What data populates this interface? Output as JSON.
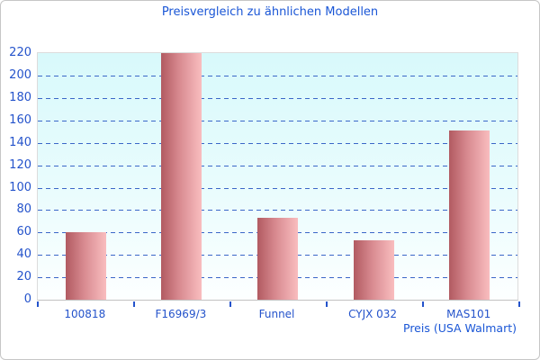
{
  "window": {
    "background": "#ffffff",
    "border_color": "#c6c6c6"
  },
  "chart_data": {
    "type": "bar",
    "title": "Preisvergleich zu ähnlichen Modellen",
    "categories": [
      "100818",
      "F16969/3",
      "Funnel",
      "CYJX 032",
      "MAS101"
    ],
    "values": [
      60,
      220,
      73,
      53,
      151
    ],
    "xlabel": "Preis (USA Walmart)",
    "ylabel": "",
    "ylim": [
      0,
      220
    ],
    "ytick_step": 20,
    "ytick_labels": [
      "0",
      "20",
      "40",
      "60",
      "80",
      "100",
      "120",
      "140",
      "160",
      "180",
      "200",
      "220"
    ],
    "grid": true,
    "gridline_style": "dashed",
    "legend": "none",
    "colors": {
      "title_text": "#1a56d6",
      "axis_text": "#2453cb",
      "gridline": "#3b67c8",
      "bar_gradient_start": "#b15a61",
      "bar_gradient_end": "#f9bdbf",
      "plot_bg_top": "#d8f9fb",
      "plot_bg_bottom": "#fdffff",
      "axis_line": "#c2c2c2",
      "plot_border": "#dcdcdc",
      "tick": "#2453cb"
    }
  }
}
